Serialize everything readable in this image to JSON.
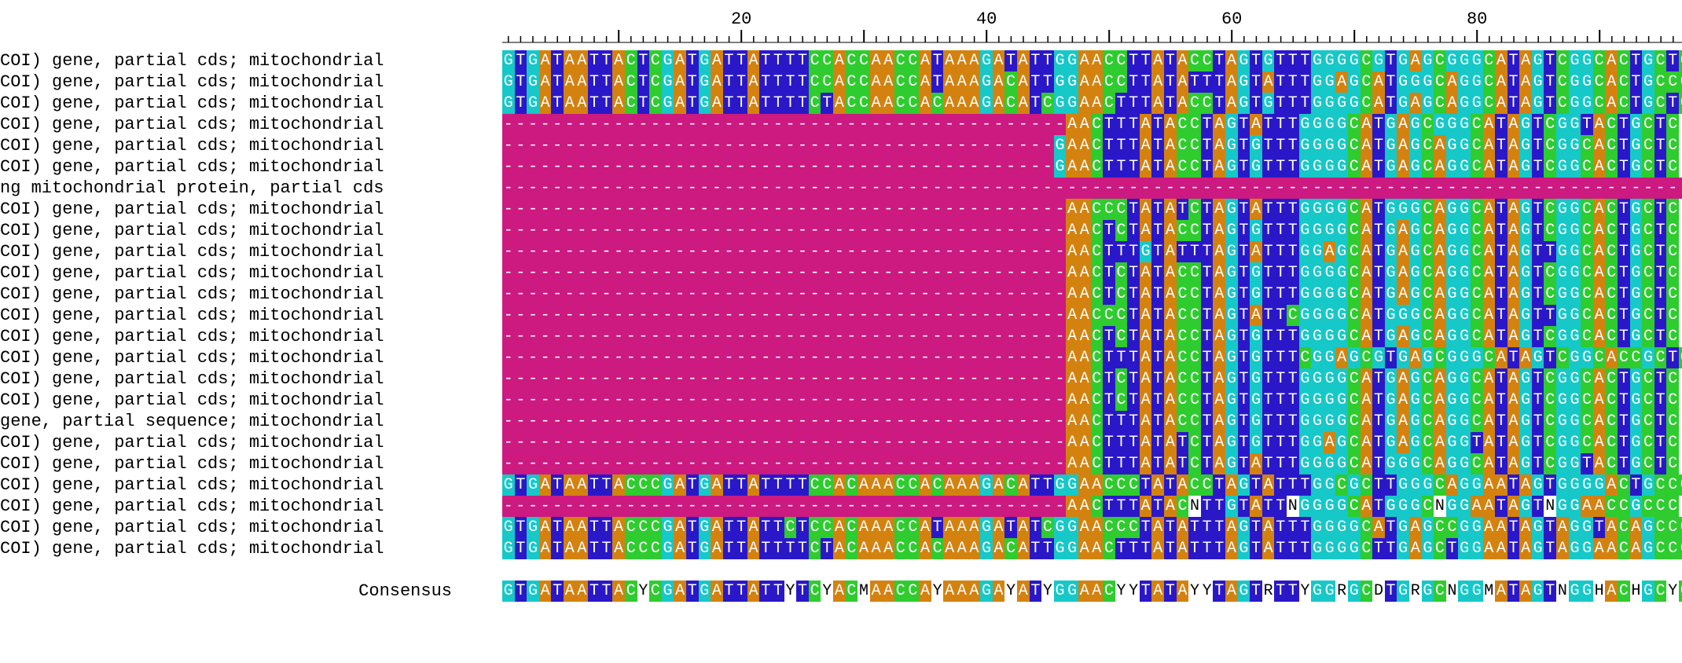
{
  "alignment": {
    "ruler_labels": [
      "20",
      "40",
      "60",
      "80"
    ],
    "rows": [
      {
        "label": "COI) gene, partial cds; mitochondrial",
        "seq": "GTGATAATTACTCGATGATTATTTTCCACCAACCATAAAGATATTGGAACCTTATACCTAGTGTTTGGGGCGTGAGCGGGCATAGTCGGCACTGCTC"
      },
      {
        "label": "COI) gene, partial cds; mitochondrial",
        "seq": "GTGATAATTACTCGATGATTATTTTCCACCAACCATAAAGACATTGGAACCTTATATTTAGTATTTGGAGCATGGGCAGGCATAGTCGGCACTGCCC"
      },
      {
        "label": "COI) gene, partial cds; mitochondrial",
        "seq": "GTGATAATTACTCGATGATTATTTTCTACCAACCACAAAGACATCGGAACTTTATACCTAGTGTTTGGGGCATGAGCAGGCATAGTCGGCACTGCTC"
      },
      {
        "label": "COI) gene, partial cds; mitochondrial",
        "seq": "----------------------------------------------AACTTTATACCTAGTATTTGGGGCATGAGCGGGCATAGTCGGTACTGCTC"
      },
      {
        "label": "COI) gene, partial cds; mitochondrial",
        "seq": "---------------------------------------------GAACTTTATACCTAGTGTTTGGGGCATGAGCAGGCATAGTCGGCACTGCTC"
      },
      {
        "label": "COI) gene, partial cds; mitochondrial",
        "seq": "---------------------------------------------GAACTTTATACCTAGTGTTTGGGGCATGAGCAGGCATAGTCGGCACTGCTC"
      },
      {
        "label": "ng mitochondrial protein, partial cds",
        "seq": "----------------------------------------------------------------------------------------------------"
      },
      {
        "label": "COI) gene, partial cds; mitochondrial",
        "seq": "----------------------------------------------AACCCTATATCTAGTATTTGGGGCATGGGCAGGCATAGTCGGCACTGCTC"
      },
      {
        "label": "COI) gene, partial cds; mitochondrial",
        "seq": "----------------------------------------------AACTCTATACCTAGTGTTTGGGGCATGAGCAGGCATAGTCGGCACTGCTC"
      },
      {
        "label": "COI) gene, partial cds; mitochondrial",
        "seq": "----------------------------------------------AACTTTGTATTTAGTATTTGGAGCATGAGCAGGCATAGTTGGCACTGCTC"
      },
      {
        "label": "COI) gene, partial cds; mitochondrial",
        "seq": "----------------------------------------------AACTCTATACCTAGTGTTTGGGGCATGAGCAGGCATAGTCGGCACTGCTC"
      },
      {
        "label": "COI) gene, partial cds; mitochondrial",
        "seq": "----------------------------------------------AACTCTATACCTAGTGTTTGGGGCATGAGCAGGCATAGTCGGCACTGCTC"
      },
      {
        "label": "COI) gene, partial cds; mitochondrial",
        "seq": "----------------------------------------------AACCCTATACCTAGTATTCGGGGCATGGGCAGGCATAGTTGGCACTGCTC"
      },
      {
        "label": "COI) gene, partial cds; mitochondrial",
        "seq": "----------------------------------------------AACTCTATACCTAGTGTTTGGGGCATGAGCAGGCATAGTCGGCACTGCTC"
      },
      {
        "label": "COI) gene, partial cds; mitochondrial",
        "seq": "----------------------------------------------AACTTTATACCTAGTGTTTCGGAGCGTGAGCGGGCATAGTCGGCACCGCTC"
      },
      {
        "label": "COI) gene, partial cds; mitochondrial",
        "seq": "----------------------------------------------AACTCTATACCTAGTGTTTGGGGCATGAGCAGGCATAGTCGGCACTGCTC"
      },
      {
        "label": "COI) gene, partial cds; mitochondrial",
        "seq": "----------------------------------------------AACTCTATACCTAGTGTTTGGGGCATGAGCAGGCATAGTCGGCACTGCTC"
      },
      {
        "label": "gene, partial sequence; mitochondrial",
        "seq": "----------------------------------------------AACTTTATACCTAGTGTTTGGGGCATGAGCAGGCATAGTCGGCACTGCTC"
      },
      {
        "label": "COI) gene, partial cds; mitochondrial",
        "seq": "----------------------------------------------AACTTTATATCTAGTGTTTGGAGCATGAGCAGGTATAGTCGGCACTGCTC"
      },
      {
        "label": "COI) gene, partial cds; mitochondrial",
        "seq": "----------------------------------------------AACTTTATATCTAGTATTTGGGGCATGGGCAGGCATAGTCGGTACTGCTC"
      },
      {
        "label": "COI) gene, partial cds; mitochondrial",
        "seq": "GTGATAATTACCCGATGATTATTTTCCACAAACCACAAAGACATTGGAACCCTATACCTAGTATTTGGCGCTTGGGCAGGAATAGTGGGGACTGCCC"
      },
      {
        "label": "COI) gene, partial cds; mitochondrial",
        "seq": "----------------------------------------------AACTTTATACNTTGTATTNGGGGCATGGGCNGGAATAGTNGGAACCGCCC"
      },
      {
        "label": "COI) gene, partial cds; mitochondrial",
        "seq": "GTGATAATTACCCGATGATTATTCTCCACAAACCATAAAGATATCGGAACCCTATATTTAGTATTTGGGGCATGAGCCGGAATAGTAGGTACAGCCC"
      },
      {
        "label": "COI) gene, partial cds; mitochondrial",
        "seq": "GTGATAATTACCCGATGATTATTTTCTACAAACCACAAAGACATTGGAACTTTATATTTAGTATTTGGGGCTTGAGCTGGAATAGTAGGAACAGCCC"
      }
    ],
    "consensus": {
      "label": "Consensus",
      "seq": "GTGATAATTACYCGATGATTATTYTCYACMAACCAYAAAGAYATYGGAACYYTATAYYTAGTRTTYGGRGCDTGRGCNGGMATAGTNGGHACHGCYC"
    }
  },
  "colors": {
    "A": "#d4820f",
    "C": "#2ecc2e",
    "G": "#16c8c8",
    "T": "#2a18c8",
    "gap": "#cc1a80",
    "N": "#ffffff",
    "ambiguous": "#ffffff"
  }
}
